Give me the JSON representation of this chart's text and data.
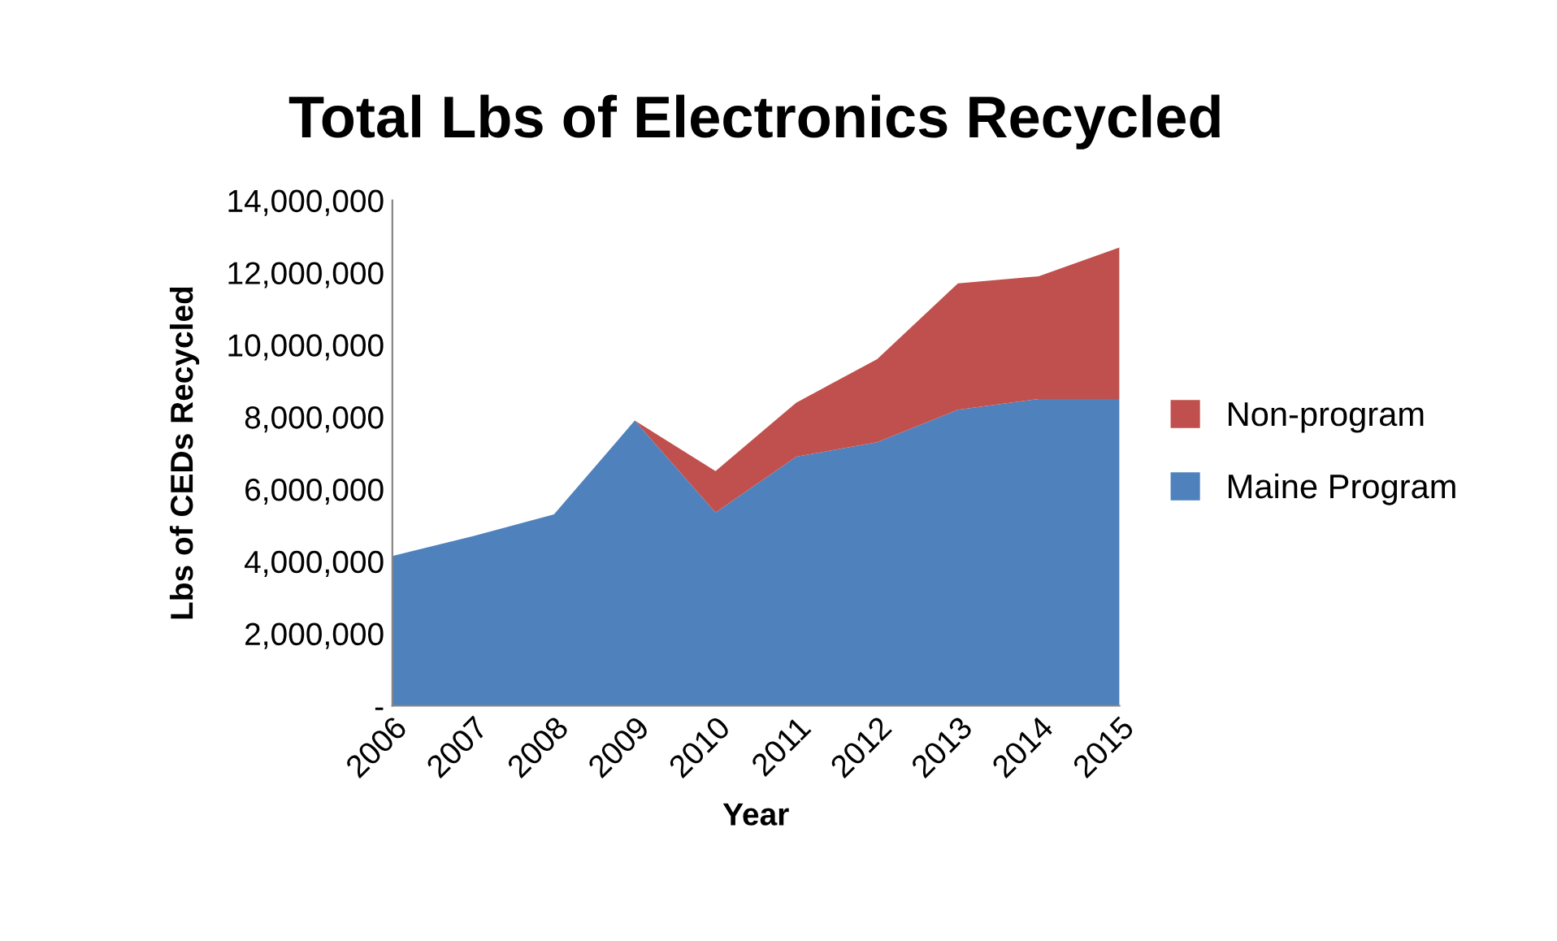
{
  "chart_data": {
    "type": "area",
    "stacked": true,
    "title": "Total Lbs of Electronics Recycled",
    "xlabel": "Year",
    "ylabel": "Lbs of CEDs Recycled",
    "categories": [
      "2006",
      "2007",
      "2008",
      "2009",
      "2010",
      "2011",
      "2012",
      "2013",
      "2014",
      "2015"
    ],
    "series": [
      {
        "name": "Maine Program",
        "color": "#4f81bd",
        "values": [
          4150000,
          4700000,
          5300000,
          7900000,
          5350000,
          6900000,
          7300000,
          8200000,
          8500000,
          8500000
        ]
      },
      {
        "name": "Non-program",
        "color": "#c0504d",
        "values": [
          0,
          0,
          0,
          0,
          1150000,
          1500000,
          2300000,
          3500000,
          3400000,
          4200000
        ]
      }
    ],
    "ylim": [
      0,
      14000000
    ],
    "yticks": [
      {
        "value": 0,
        "label": "-"
      },
      {
        "value": 2000000,
        "label": "2,000,000"
      },
      {
        "value": 4000000,
        "label": "4,000,000"
      },
      {
        "value": 6000000,
        "label": "6,000,000"
      },
      {
        "value": 8000000,
        "label": "8,000,000"
      },
      {
        "value": 10000000,
        "label": "10,000,000"
      },
      {
        "value": 12000000,
        "label": "12,000,000"
      },
      {
        "value": 14000000,
        "label": "14,000,000"
      }
    ],
    "grid": false,
    "legend": "right"
  }
}
